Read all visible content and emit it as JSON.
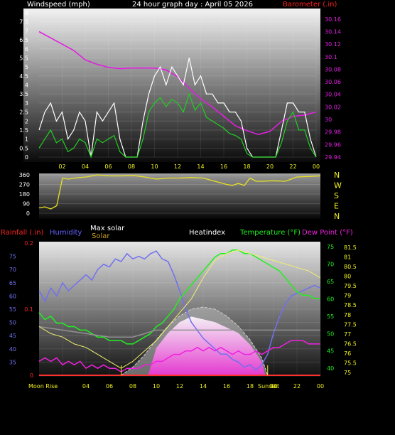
{
  "chart_data": [
    {
      "type": "line",
      "title": "24 hour graph day : April 05 2026",
      "ylabel": "Windspeed (mph)",
      "y2label": "Barometer (.in)",
      "ylim": [
        0,
        8
      ],
      "y2lim": [
        29.94,
        30.17
      ],
      "yticks": [
        "0",
        "0.5",
        "1",
        "1.5",
        "2",
        "2.5",
        "3",
        "3.5",
        "4",
        "4.5",
        "5",
        "5.5",
        "6",
        "6.5",
        "7",
        "7.5",
        "8"
      ],
      "y2ticks": [
        "29.94",
        "29.96",
        "29.98",
        "30",
        "30.02",
        "30.04",
        "30.06",
        "30.08",
        "30.1",
        "30.12",
        "30.14",
        "30.16"
      ],
      "xticks": [
        "02",
        "04",
        "06",
        "08",
        "10",
        "12",
        "14",
        "16",
        "18",
        "20",
        "22",
        "00"
      ],
      "series": [
        {
          "name": "Barometer",
          "color": "#e020e0",
          "axis": "right",
          "x": [
            0,
            1,
            2,
            3,
            4,
            5,
            6,
            7,
            8,
            9,
            10,
            11,
            12,
            13,
            14,
            15,
            16,
            17,
            18,
            19,
            20,
            21,
            22,
            23,
            24
          ],
          "values": [
            30.14,
            30.13,
            30.12,
            30.11,
            30.095,
            30.088,
            30.083,
            30.081,
            30.082,
            30.082,
            30.082,
            30.079,
            30.068,
            30.05,
            30.033,
            30.02,
            30.005,
            29.99,
            29.982,
            29.976,
            29.981,
            29.997,
            30.005,
            30.007,
            30.012
          ]
        },
        {
          "name": "Gust",
          "color": "#ffffff",
          "axis": "left",
          "x": [
            0,
            0.5,
            1,
            1.5,
            2,
            2.5,
            3,
            3.5,
            4,
            4.5,
            5,
            5.5,
            6,
            6.5,
            7,
            7.5,
            8,
            8.5,
            9,
            9.5,
            10,
            10.5,
            11,
            11.5,
            12,
            12.5,
            13,
            13.5,
            14,
            14.5,
            15,
            15.5,
            16,
            16.5,
            17,
            17.5,
            18,
            18.5,
            19,
            19.5,
            20,
            20.5,
            21,
            21.5,
            22,
            22.5,
            23,
            23.5,
            24
          ],
          "values": [
            1.5,
            2.5,
            3,
            2,
            2.5,
            1,
            1.5,
            2.5,
            2,
            0,
            2.5,
            2,
            2.5,
            3,
            1,
            0,
            0,
            0,
            2,
            3.5,
            4.5,
            5,
            4,
            5,
            4.5,
            4,
            5.5,
            4,
            4.5,
            3.5,
            3.5,
            3,
            3,
            2.5,
            2.5,
            2,
            0.5,
            0,
            0,
            0,
            0,
            0,
            1.5,
            3,
            3,
            2.5,
            2.5,
            1,
            0
          ]
        },
        {
          "name": "Wind Speed",
          "color": "#20d020",
          "axis": "left",
          "x": [
            0,
            0.5,
            1,
            1.5,
            2,
            2.5,
            3,
            3.5,
            4,
            4.5,
            5,
            5.5,
            6,
            6.5,
            7,
            7.5,
            8,
            8.5,
            9,
            9.5,
            10,
            10.5,
            11,
            11.5,
            12,
            12.5,
            13,
            13.5,
            14,
            14.5,
            15,
            15.5,
            16,
            16.5,
            17,
            17.5,
            18,
            18.5,
            19,
            19.5,
            20,
            20.5,
            21,
            21.5,
            22,
            22.5,
            23,
            23.5,
            24
          ],
          "values": [
            0.5,
            1,
            1.5,
            0.8,
            1,
            0.3,
            0.5,
            1,
            0.8,
            0,
            1,
            0.8,
            1,
            1.2,
            0.3,
            0,
            0,
            0,
            1,
            2.5,
            3,
            3.3,
            2.8,
            3.2,
            3,
            2.5,
            3.5,
            2.6,
            3,
            2.2,
            2,
            1.8,
            1.6,
            1.3,
            1.2,
            1,
            0.2,
            0,
            0,
            0,
            0,
            0,
            0.8,
            2,
            2.5,
            1.5,
            1.5,
            0.5,
            0
          ]
        }
      ]
    },
    {
      "type": "line",
      "title": "",
      "ylabel": "",
      "ylim": [
        0,
        360
      ],
      "yticks": [
        "0",
        "90",
        "180",
        "270",
        "360"
      ],
      "compass": [
        "N",
        "W",
        "S",
        "E",
        "N"
      ],
      "series": [
        {
          "name": "Wind Direction",
          "color": "#e8e020",
          "x": [
            0,
            0.5,
            1,
            1.5,
            2,
            2.5,
            3,
            4,
            5,
            6,
            7,
            8,
            9,
            10,
            11,
            12,
            13,
            14,
            15,
            15.5,
            16,
            16.5,
            17,
            17.5,
            18,
            18.5,
            19,
            20,
            21,
            21.5,
            22,
            23,
            24
          ],
          "values": [
            50,
            60,
            40,
            70,
            330,
            320,
            330,
            340,
            360,
            350,
            350,
            355,
            340,
            320,
            330,
            330,
            335,
            330,
            300,
            285,
            270,
            260,
            280,
            260,
            330,
            300,
            300,
            305,
            300,
            320,
            340,
            345,
            350
          ]
        }
      ]
    },
    {
      "type": "line",
      "title": "",
      "labels": {
        "rainfall": "Rainfall (.in)",
        "humidity": "Humidity",
        "max_solar": "Max solar",
        "solar": "Solar",
        "heatindex": "Heatindex",
        "temperature": "Temperature (°F)",
        "dew_point": "Dew Point (°F)"
      },
      "ylim_humidity": [
        30,
        80
      ],
      "ylim_temp": [
        38,
        76
      ],
      "yticks_humidity": [
        "35",
        "40",
        "45",
        "50",
        "55",
        "60",
        "65",
        "70",
        "75"
      ],
      "yticks_temp": [
        "40",
        "45",
        "50",
        "55",
        "60",
        "65",
        "70",
        "75"
      ],
      "yticks_rain": [
        "0",
        "0.1",
        "0.2"
      ],
      "yticks_heatindex": [
        "75",
        "75.5",
        "76",
        "76.5",
        "77",
        "77.5",
        "78",
        "78.5",
        "79",
        "79.5",
        "80",
        "80.5",
        "81",
        "81.5"
      ],
      "xticks": [
        "02",
        "04",
        "06",
        "08",
        "10",
        "12",
        "14",
        "16",
        "18",
        "20",
        "22",
        "00"
      ],
      "annotations": [
        "Moon Rise",
        "Sunset",
        "Set"
      ],
      "series": [
        {
          "name": "Humidity",
          "color": "#7070f0",
          "axis": "humidity",
          "x": [
            0,
            0.5,
            1,
            1.5,
            2,
            2.5,
            3,
            3.5,
            4,
            4.5,
            5,
            5.5,
            6,
            6.5,
            7,
            7.5,
            8,
            8.5,
            9,
            9.5,
            10,
            10.5,
            11,
            11.5,
            12,
            12.5,
            13,
            13.5,
            14,
            14.5,
            15,
            15.5,
            16,
            16.5,
            17,
            17.5,
            18,
            18.5,
            19,
            19.5,
            20,
            20.5,
            21,
            21.5,
            22,
            22.5,
            23,
            23.5,
            24
          ],
          "values": [
            62,
            58,
            63,
            60,
            65,
            62,
            64,
            66,
            68,
            66,
            70,
            72,
            71,
            74,
            73,
            76,
            74,
            75,
            74,
            76,
            77,
            74,
            73,
            68,
            62,
            55,
            50,
            47,
            44,
            42,
            40,
            38,
            38,
            36,
            35,
            33,
            34,
            32,
            34,
            38,
            46,
            52,
            57,
            60,
            61,
            62,
            63,
            64,
            63
          ]
        },
        {
          "name": "Temperature",
          "color": "#20f020",
          "axis": "temp",
          "x": [
            0,
            0.5,
            1,
            1.5,
            2,
            2.5,
            3,
            3.5,
            4,
            4.5,
            5,
            5.5,
            6,
            6.5,
            7,
            7.5,
            8,
            8.5,
            9,
            9.5,
            10,
            10.5,
            11,
            11.5,
            12,
            12.5,
            13,
            13.5,
            14,
            14.5,
            15,
            15.5,
            16,
            16.5,
            17,
            17.5,
            18,
            18.5,
            19,
            19.5,
            20,
            20.5,
            21,
            21.5,
            22,
            22.5,
            23,
            23.5,
            24
          ],
          "values": [
            56,
            54,
            55,
            53,
            53,
            52,
            52,
            51,
            51,
            50,
            49,
            49,
            48,
            48,
            48,
            47,
            47,
            48,
            49,
            50,
            52,
            53,
            55,
            57,
            60,
            62,
            64,
            66,
            68,
            70,
            72,
            73,
            73,
            74,
            74,
            73,
            73,
            72,
            71,
            70,
            69,
            68,
            66,
            64,
            62,
            61,
            61,
            60,
            60
          ]
        },
        {
          "name": "Dew Point",
          "color": "#f020e0",
          "axis": "temp",
          "x": [
            0,
            0.5,
            1,
            1.5,
            2,
            2.5,
            3,
            3.5,
            4,
            4.5,
            5,
            5.5,
            6,
            6.5,
            7,
            7.5,
            8,
            8.5,
            9,
            9.5,
            10,
            10.5,
            11,
            11.5,
            12,
            12.5,
            13,
            13.5,
            14,
            14.5,
            15,
            15.5,
            16,
            16.5,
            17,
            17.5,
            18,
            18.5,
            19,
            19.5,
            20,
            20.5,
            21,
            21.5,
            22,
            22.5,
            23,
            23.5,
            24
          ],
          "values": [
            42,
            43,
            42,
            43,
            41,
            42,
            41,
            42,
            40,
            41,
            40,
            41,
            40,
            40,
            39,
            40,
            40,
            40,
            41,
            41,
            42,
            42,
            43,
            44,
            44,
            45,
            45,
            46,
            45,
            46,
            45,
            46,
            45,
            44,
            45,
            44,
            44,
            45,
            44,
            45,
            46,
            46,
            47,
            48,
            48,
            48,
            47,
            47,
            47
          ]
        },
        {
          "name": "Heatindex",
          "color": "#909090",
          "axis": "temp",
          "x": [
            0,
            2,
            4,
            6,
            8,
            10,
            12,
            14,
            16,
            18,
            20,
            22,
            24
          ],
          "values": [
            52,
            51,
            50,
            49,
            49,
            51,
            51,
            51,
            51,
            51,
            51,
            51,
            51
          ]
        },
        {
          "name": "Max solar",
          "color": "#d0d0d0",
          "axis": "solar",
          "x": [
            7,
            8,
            9,
            10,
            11,
            12,
            13,
            14,
            15,
            16,
            17,
            18,
            19,
            19.5
          ],
          "values": [
            0,
            0.12,
            0.3,
            0.52,
            0.72,
            0.87,
            0.97,
            1,
            0.97,
            0.87,
            0.72,
            0.52,
            0.25,
            0
          ]
        },
        {
          "name": "Solar",
          "color": "#f0a0e0",
          "axis": "solar",
          "x": [
            9.3,
            10,
            11,
            12,
            13,
            14,
            15,
            16,
            17,
            18,
            19,
            19.3
          ],
          "values": [
            0,
            0.4,
            0.62,
            0.78,
            0.86,
            0.82,
            0.78,
            0.7,
            0.62,
            0.45,
            0.2,
            0
          ]
        },
        {
          "name": "Heatindex line",
          "color": "#f0f070",
          "axis": "temp",
          "x": [
            0,
            1,
            2,
            3,
            4,
            5,
            6,
            7,
            8,
            9,
            10,
            11,
            12,
            13,
            14,
            15,
            16,
            17,
            18,
            19,
            20,
            21,
            22,
            23,
            24
          ],
          "values": [
            52,
            50,
            49,
            47,
            46,
            44,
            42,
            40,
            42,
            45,
            48,
            52,
            56,
            60,
            66,
            71,
            73,
            74,
            73,
            72,
            71,
            70,
            69,
            68,
            66
          ]
        }
      ]
    }
  ]
}
